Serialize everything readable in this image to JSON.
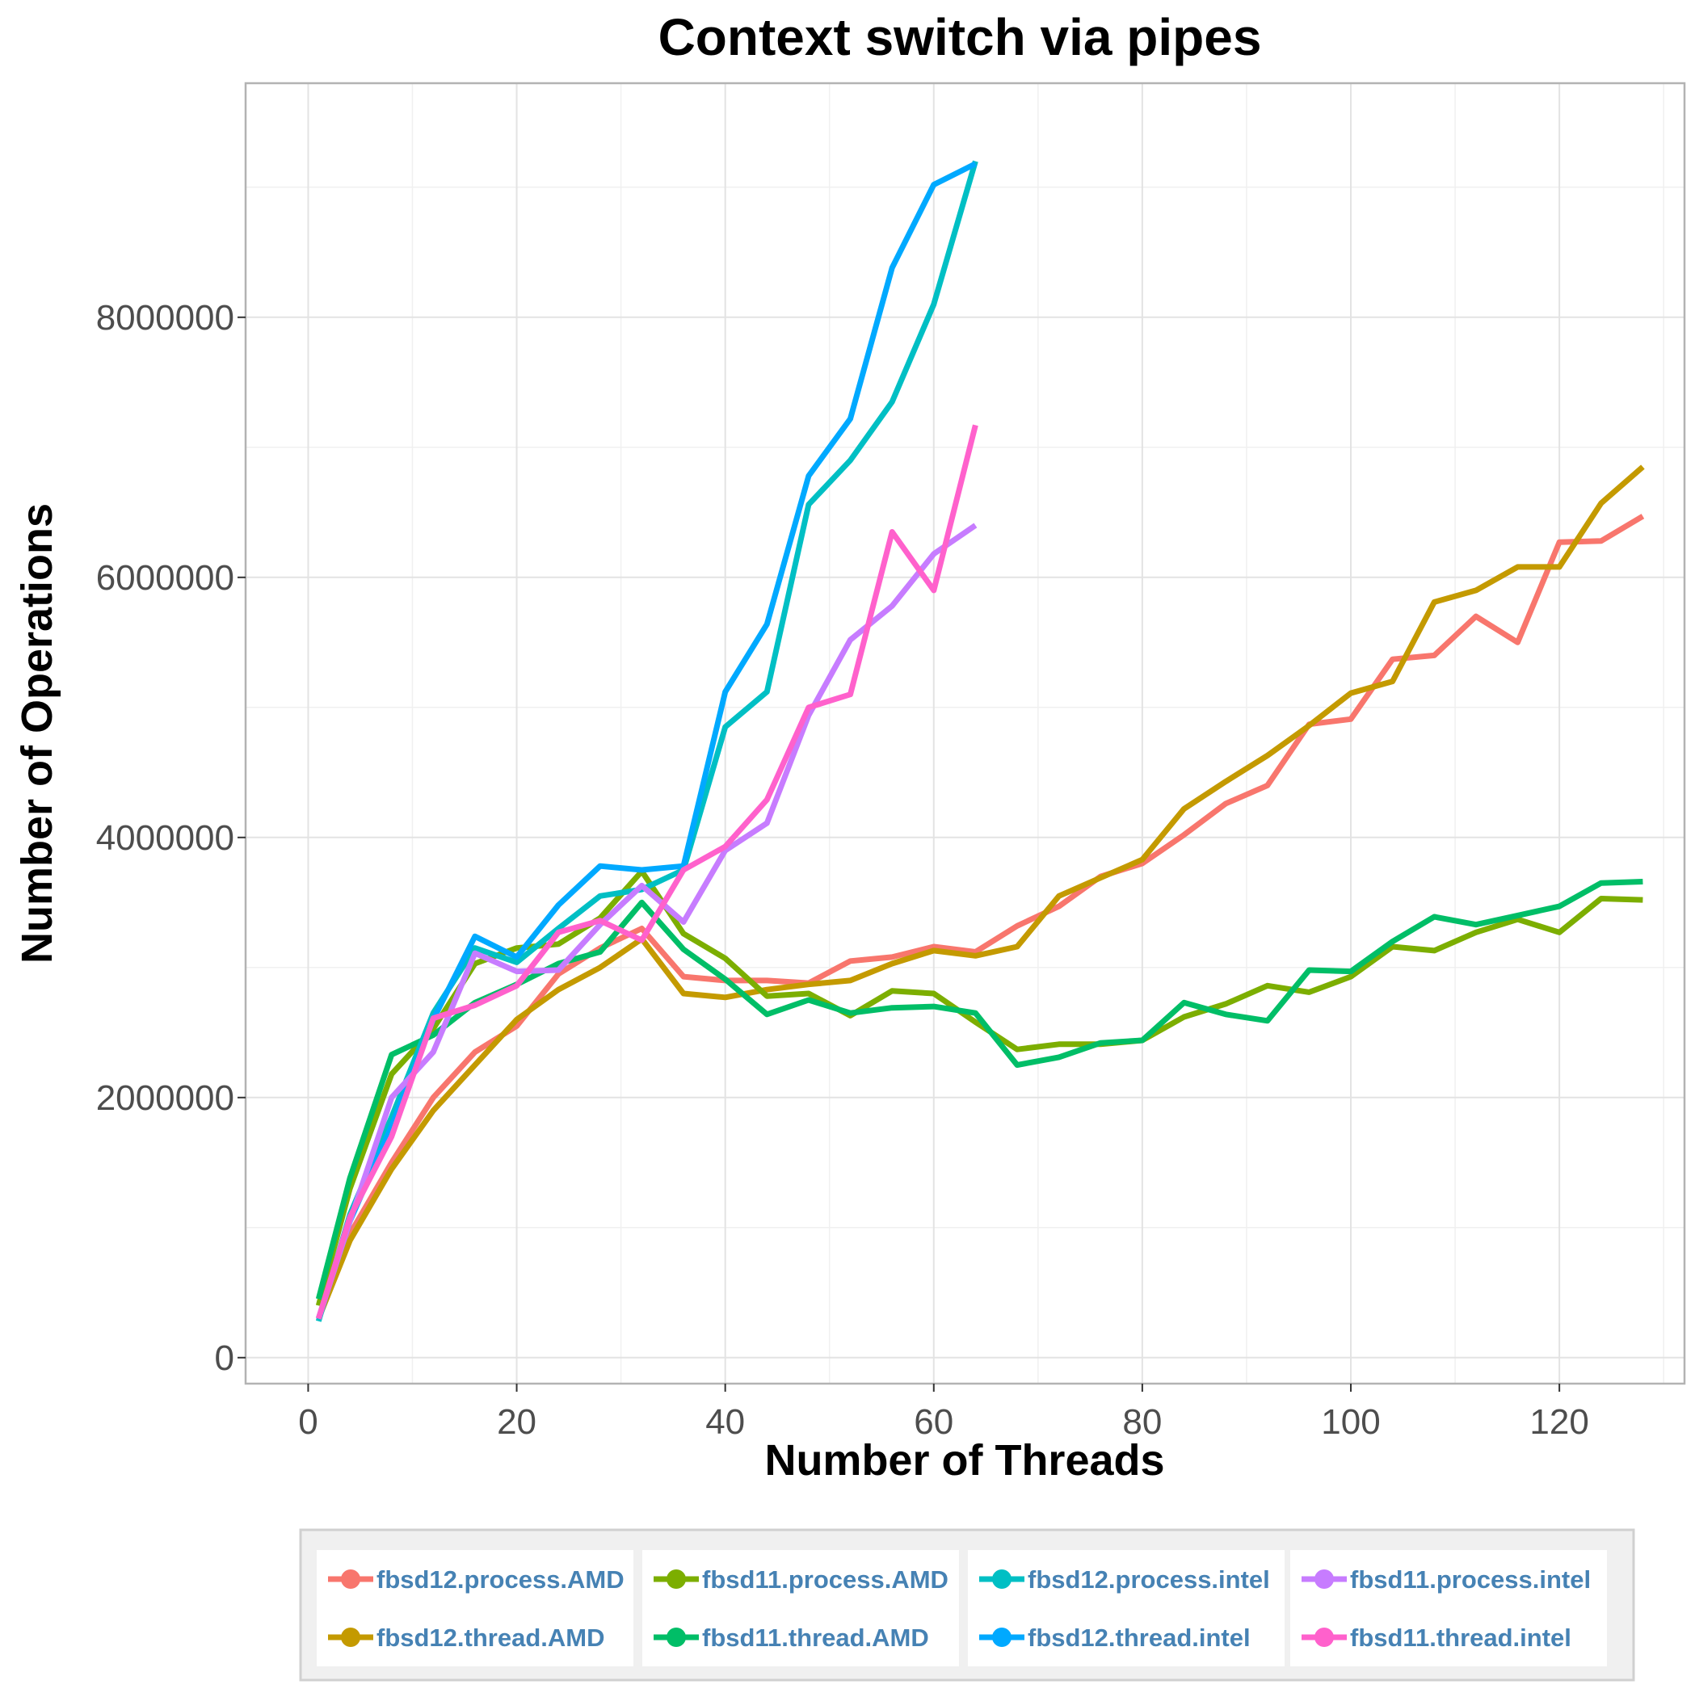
{
  "chart_data": {
    "type": "line",
    "title": "Context switch via pipes",
    "xlabel": "Number of Threads",
    "ylabel": "Number of Operations",
    "xlim": [
      -6,
      132
    ],
    "ylim": [
      -200000,
      9800000
    ],
    "xticks": [
      0,
      20,
      40,
      60,
      80,
      100,
      120
    ],
    "yticks": [
      0,
      2000000,
      4000000,
      6000000,
      8000000
    ],
    "grid": true,
    "legend_position": "bottom",
    "series": [
      {
        "name": "fbsd12.process.AMD",
        "color": "#F8766D",
        "x": [
          1,
          4,
          8,
          12,
          16,
          20,
          24,
          28,
          32,
          36,
          40,
          44,
          48,
          52,
          56,
          60,
          64,
          68,
          72,
          76,
          80,
          84,
          88,
          92,
          96,
          100,
          104,
          108,
          112,
          116,
          120,
          124,
          128
        ],
        "y": [
          300000,
          950000,
          1500000,
          2000000,
          2350000,
          2550000,
          2950000,
          3150000,
          3300000,
          2930000,
          2900000,
          2900000,
          2880000,
          3050000,
          3080000,
          3160000,
          3120000,
          3320000,
          3470000,
          3700000,
          3800000,
          4020000,
          4260000,
          4400000,
          4870000,
          4910000,
          5370000,
          5400000,
          5700000,
          5500000,
          6270000,
          6280000,
          6470000
        ]
      },
      {
        "name": "fbsd12.thread.AMD",
        "color": "#C49A00",
        "x": [
          1,
          4,
          8,
          12,
          16,
          20,
          24,
          28,
          32,
          36,
          40,
          44,
          48,
          52,
          56,
          60,
          64,
          68,
          72,
          76,
          80,
          84,
          88,
          92,
          96,
          100,
          104,
          108,
          112,
          116,
          120,
          124,
          128
        ],
        "y": [
          300000,
          900000,
          1450000,
          1900000,
          2250000,
          2600000,
          2830000,
          3000000,
          3220000,
          2800000,
          2770000,
          2830000,
          2870000,
          2900000,
          3030000,
          3130000,
          3090000,
          3160000,
          3550000,
          3690000,
          3830000,
          4220000,
          4430000,
          4630000,
          4860000,
          5110000,
          5200000,
          5810000,
          5900000,
          6080000,
          6080000,
          6570000,
          6850000
        ]
      },
      {
        "name": "fbsd11.process.AMD",
        "color": "#7CAE00",
        "x": [
          1,
          4,
          8,
          12,
          16,
          20,
          24,
          28,
          32,
          36,
          40,
          44,
          48,
          52,
          56,
          60,
          64,
          68,
          72,
          76,
          80,
          84,
          88,
          92,
          96,
          100,
          104,
          108,
          112,
          116,
          120,
          124,
          128
        ],
        "y": [
          400000,
          1300000,
          2180000,
          2530000,
          3030000,
          3150000,
          3180000,
          3380000,
          3740000,
          3260000,
          3070000,
          2780000,
          2800000,
          2630000,
          2820000,
          2800000,
          2580000,
          2370000,
          2410000,
          2410000,
          2440000,
          2620000,
          2720000,
          2860000,
          2810000,
          2930000,
          3160000,
          3130000,
          3270000,
          3370000,
          3270000,
          3530000,
          3520000
        ]
      },
      {
        "name": "fbsd11.thread.AMD",
        "color": "#00BE67",
        "x": [
          1,
          4,
          8,
          12,
          16,
          20,
          24,
          28,
          32,
          36,
          40,
          44,
          48,
          52,
          56,
          60,
          64,
          68,
          72,
          76,
          80,
          84,
          88,
          92,
          96,
          100,
          104,
          108,
          112,
          116,
          120,
          124,
          128
        ],
        "y": [
          450000,
          1380000,
          2330000,
          2480000,
          2730000,
          2870000,
          3030000,
          3120000,
          3500000,
          3140000,
          2910000,
          2640000,
          2750000,
          2650000,
          2690000,
          2700000,
          2650000,
          2250000,
          2310000,
          2420000,
          2440000,
          2730000,
          2640000,
          2590000,
          2980000,
          2970000,
          3200000,
          3390000,
          3330000,
          3400000,
          3470000,
          3650000,
          3660000
        ]
      },
      {
        "name": "fbsd12.process.intel",
        "color": "#00BFC4",
        "x": [
          1,
          4,
          8,
          12,
          16,
          20,
          24,
          28,
          32,
          36,
          40,
          44,
          48,
          52,
          56,
          60,
          64
        ],
        "y": [
          280000,
          1100000,
          1850000,
          2650000,
          3150000,
          3040000,
          3300000,
          3550000,
          3600000,
          3750000,
          4850000,
          5120000,
          6560000,
          6900000,
          7350000,
          8100000,
          9200000
        ]
      },
      {
        "name": "fbsd12.thread.intel",
        "color": "#00A9FF",
        "x": [
          1,
          4,
          8,
          12,
          16,
          20,
          24,
          28,
          32,
          36,
          40,
          44,
          48,
          52,
          56,
          60,
          64
        ],
        "y": [
          300000,
          1050000,
          1780000,
          2600000,
          3240000,
          3080000,
          3480000,
          3780000,
          3750000,
          3780000,
          5120000,
          5640000,
          6780000,
          7220000,
          8380000,
          9020000,
          9180000
        ]
      },
      {
        "name": "fbsd11.process.intel",
        "color": "#C77CFF",
        "x": [
          1,
          4,
          8,
          12,
          16,
          20,
          24,
          28,
          32,
          36,
          40,
          44,
          48,
          52,
          56,
          60,
          64
        ],
        "y": [
          300000,
          1050000,
          2000000,
          2350000,
          3110000,
          2970000,
          2980000,
          3330000,
          3630000,
          3350000,
          3900000,
          4110000,
          4940000,
          5520000,
          5780000,
          6180000,
          6400000
        ]
      },
      {
        "name": "fbsd11.thread.intel",
        "color": "#FF61CC",
        "x": [
          1,
          4,
          8,
          12,
          16,
          20,
          24,
          28,
          32,
          36,
          40,
          44,
          48,
          52,
          56,
          60,
          64
        ],
        "y": [
          300000,
          1080000,
          1700000,
          2610000,
          2710000,
          2860000,
          3270000,
          3360000,
          3210000,
          3750000,
          3930000,
          4290000,
          5000000,
          5100000,
          6350000,
          5900000,
          7170000
        ]
      }
    ]
  }
}
